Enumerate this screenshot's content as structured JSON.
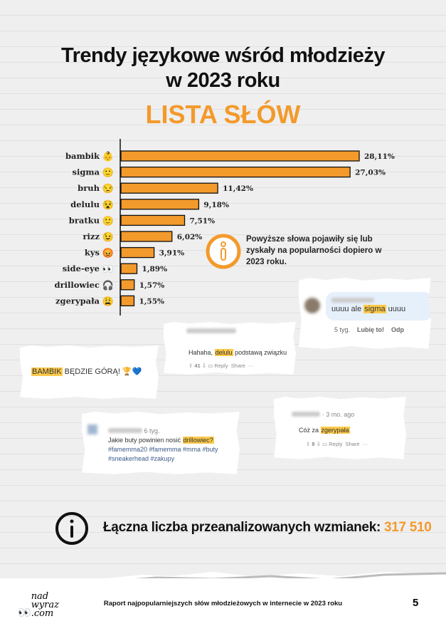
{
  "header": {
    "title_line1": "Trendy językowe wśród młodzieży",
    "title_line2": "w 2023 roku",
    "subtitle": "LISTA SŁÓW"
  },
  "chart_data": {
    "type": "bar",
    "orientation": "horizontal",
    "categories": [
      "bambik",
      "sigma",
      "bruh",
      "delulu",
      "bratku",
      "rizz",
      "kys",
      "side-eye",
      "drillowiec",
      "zgerypała"
    ],
    "values": [
      28.11,
      27.03,
      11.42,
      9.18,
      7.51,
      6.02,
      3.91,
      1.89,
      1.57,
      1.55
    ],
    "value_labels": [
      "28,11%",
      "27,03%",
      "11,42%",
      "9,18%",
      "7,51%",
      "6,02%",
      "3,91%",
      "1,89%",
      "1,57%",
      "1,55%"
    ],
    "emoji": [
      "👶",
      "🙂",
      "😒",
      "😵",
      "🙂",
      "😉",
      "😡",
      "👀",
      "🎧",
      "😩"
    ],
    "bar_color": "#f39a2c",
    "grid": false,
    "legend": "none"
  },
  "info_note": "Powyższe słowa pojawiły się lub zyskały na popularności dopiero w 2023 roku.",
  "snippets": {
    "sigma": {
      "pre": "uuuu ale ",
      "hl": "sigma",
      "post": " uuuu",
      "time": "5 tyg.",
      "like": "Lubię to!",
      "reply": "Odp"
    },
    "delulu": {
      "pre": "Hahaha, ",
      "hl": "delulu",
      "post": " podstawą związku",
      "votes": "41",
      "reply": "Reply",
      "share": "Share",
      "more": "···"
    },
    "bambik": {
      "hl": "BAMBIK",
      "post": " BĘDZIE GÓRĄ! 🏆💙"
    },
    "drillowiec": {
      "time": "6 tyg.",
      "pre": "Jakie buty powinien nosić ",
      "hl": "drillowiec?",
      "tags1": "#famemma20 #famemma #mma #buty",
      "tags2": "#sneakerhead #zakupy"
    },
    "zgerypala": {
      "time": "· 3 mo. ago",
      "pre": "Cóż za ",
      "hl": "zgerypała",
      "votes": "8",
      "reply": "Reply",
      "share": "Share",
      "more": "···"
    }
  },
  "total": {
    "label": "Łączna liczba przeanalizowanych wzmianek:",
    "value": "317 510"
  },
  "footer": {
    "logo": "nad wyraz .com",
    "text": "Raport najpopularniejszych słów młodzieżowych w internecie w 2023 roku",
    "page": "5"
  },
  "colors": {
    "accent": "#f39a2c",
    "highlight": "#fbc94a"
  }
}
